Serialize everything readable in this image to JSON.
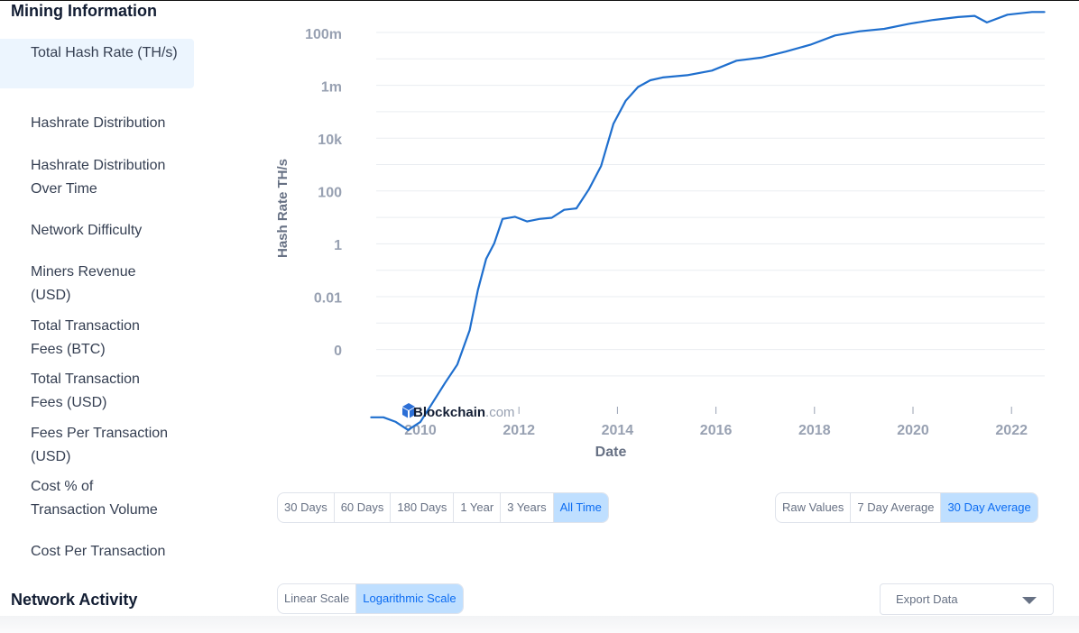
{
  "sidebar": {
    "section_mining": "Mining Information",
    "items": [
      {
        "label": "Total Hash Rate (TH/s)",
        "active": true
      },
      {
        "label": "Hashrate Distribution"
      },
      {
        "label": "Hashrate Distribution Over Time"
      },
      {
        "label": "Network Difficulty"
      },
      {
        "label": "Miners Revenue (USD)"
      },
      {
        "label": "Total Transaction Fees (BTC)"
      },
      {
        "label": "Total Transaction Fees (USD)"
      },
      {
        "label": "Fees Per Transaction (USD)"
      },
      {
        "label": "Cost % of Transaction Volume"
      },
      {
        "label": "Cost Per Transaction"
      }
    ],
    "section_network": "Network Activity"
  },
  "chart_data": {
    "type": "line",
    "ylabel": "Hash Rate TH/s",
    "xlabel": "Date",
    "yscale": "log",
    "y_ticks": [
      "0",
      "0.01",
      "1",
      "100",
      "10k",
      "1m",
      "100m"
    ],
    "x_ticks": [
      "2010",
      "2012",
      "2014",
      "2016",
      "2018",
      "2020",
      "2022"
    ],
    "watermark_brand": "Blockchain",
    "watermark_suffix": ".com",
    "line_color": "#1f6fce",
    "grid": true,
    "series": [
      {
        "x": [
          "2009-01",
          "2009-04",
          "2009-07",
          "2009-10",
          "2010-01",
          "2010-04",
          "2010-07",
          "2010-10",
          "2011-01",
          "2011-03",
          "2011-05",
          "2011-07",
          "2011-09",
          "2011-12",
          "2012-03",
          "2012-06",
          "2012-09",
          "2012-12",
          "2013-03",
          "2013-06",
          "2013-09",
          "2013-12",
          "2014-03",
          "2014-06",
          "2014-09",
          "2014-12",
          "2015-06",
          "2015-12",
          "2016-06",
          "2016-12",
          "2017-06",
          "2017-12",
          "2018-06",
          "2018-12",
          "2019-06",
          "2019-12",
          "2020-06",
          "2020-12",
          "2021-04",
          "2021-07",
          "2021-12",
          "2022-06",
          "2022-09"
        ],
        "y": [
          3e-07,
          3e-07,
          2e-07,
          1e-07,
          2e-07,
          1.1e-06,
          6e-06,
          3e-05,
          0.0006,
          0.02,
          0.3,
          1.2,
          10,
          12,
          8,
          10,
          11,
          22,
          25,
          130,
          1000,
          40000,
          300000,
          1000000,
          1800000,
          2300000,
          2800000,
          4200000,
          10000000,
          13000000,
          22000000,
          40000000,
          90000000,
          130000000,
          160000000,
          250000000,
          350000000,
          450000000,
          500000000,
          280000000,
          550000000,
          700000000,
          700000000
        ]
      }
    ]
  },
  "controls": {
    "ranges": [
      {
        "label": "30 Days"
      },
      {
        "label": "60 Days"
      },
      {
        "label": "180 Days"
      },
      {
        "label": "1 Year"
      },
      {
        "label": "3 Years"
      },
      {
        "label": "All Time",
        "selected": true
      }
    ],
    "averages": [
      {
        "label": "Raw Values"
      },
      {
        "label": "7 Day Average"
      },
      {
        "label": "30 Day Average",
        "selected": true
      }
    ],
    "scales": [
      {
        "label": "Linear Scale"
      },
      {
        "label": "Logarithmic Scale",
        "selected": true
      }
    ],
    "export_label": "Export Data"
  }
}
